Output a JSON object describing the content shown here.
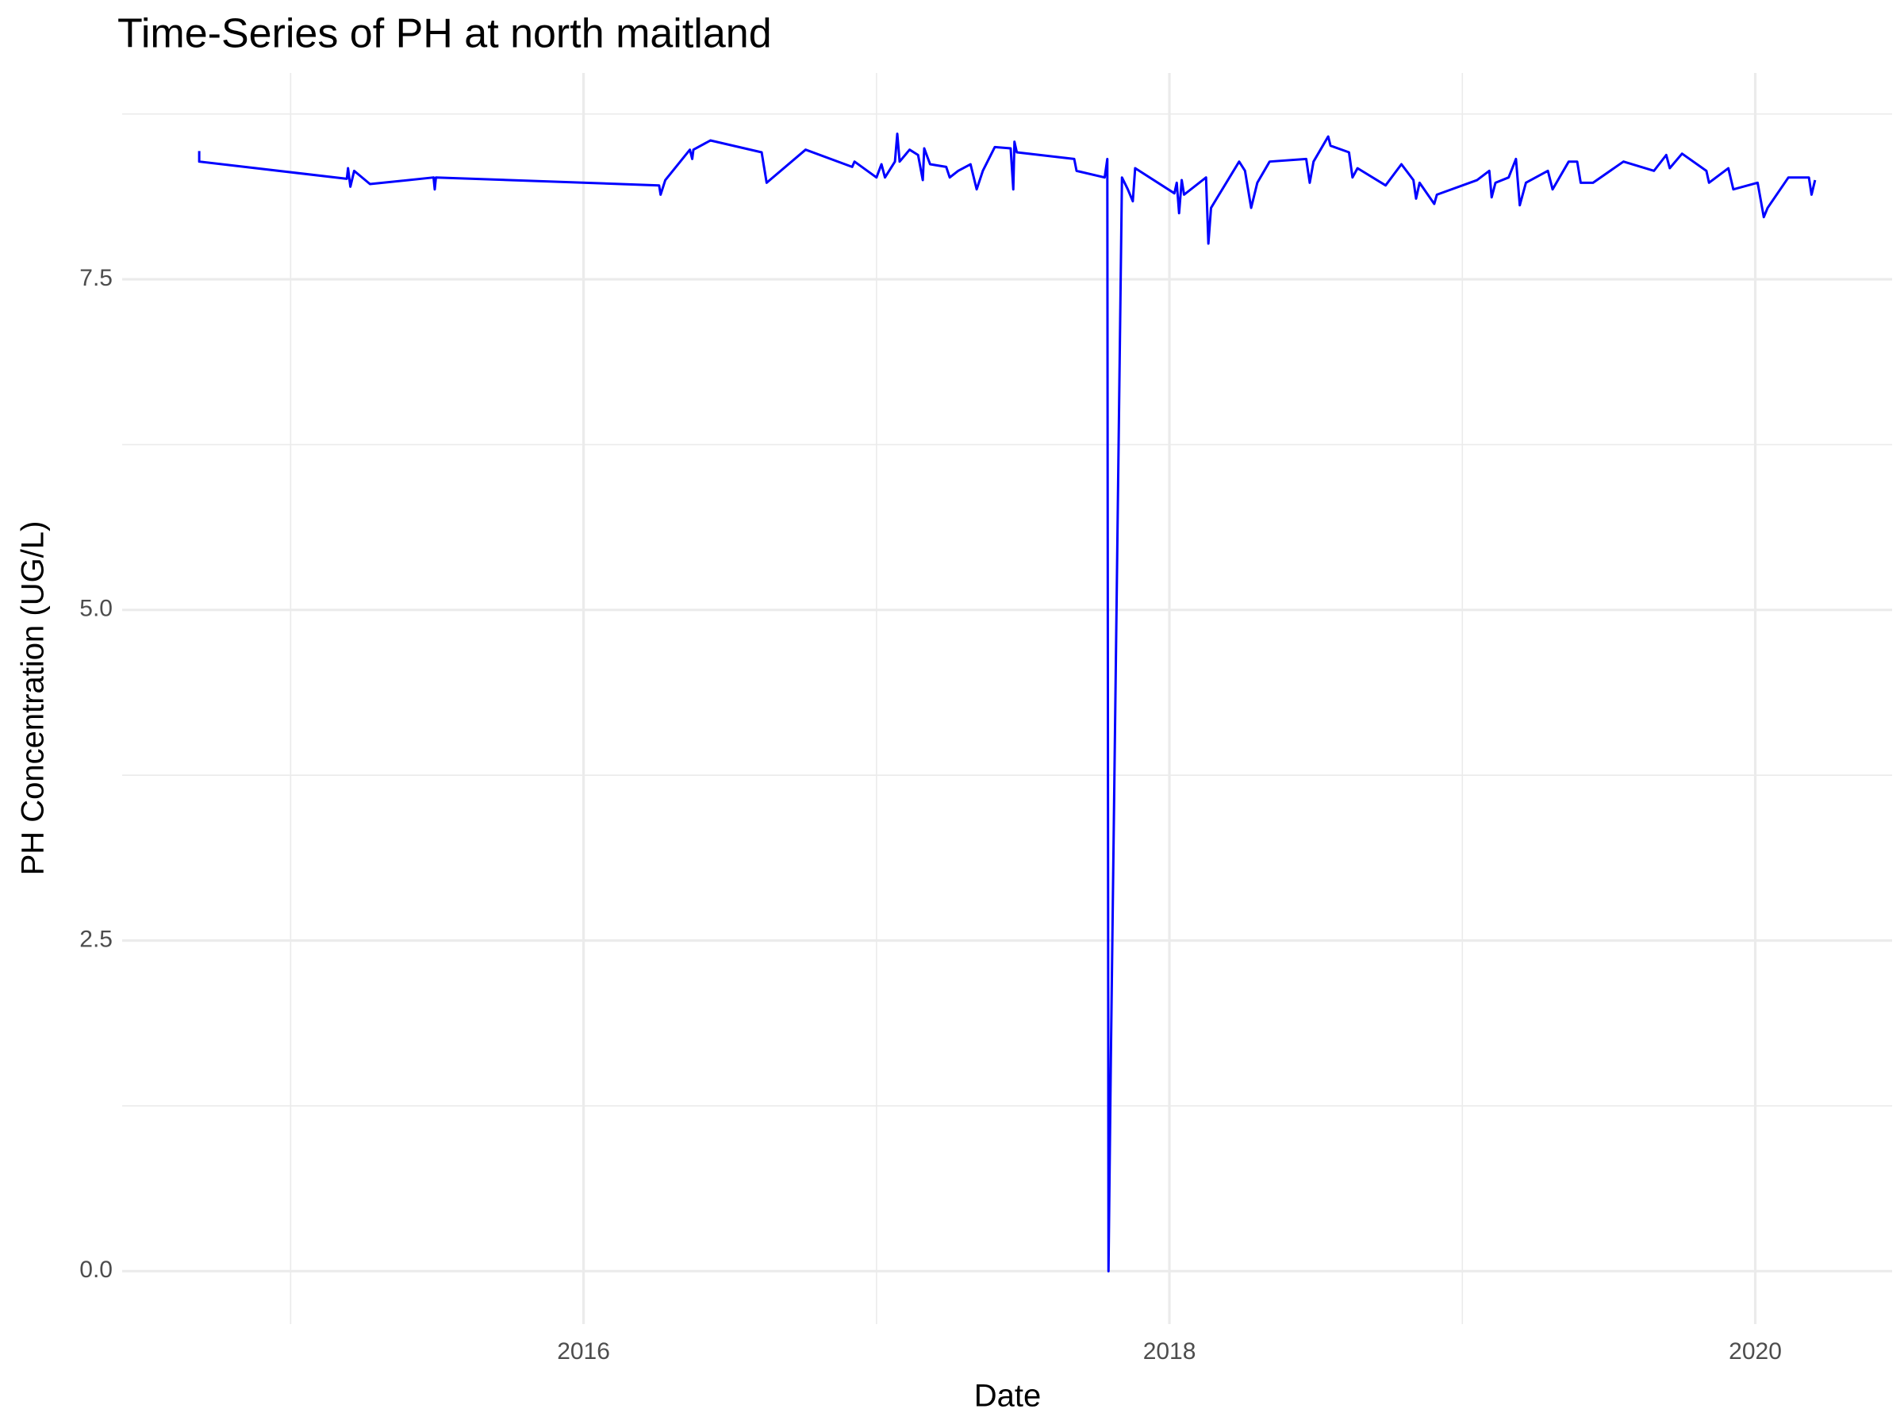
{
  "chart_data": {
    "type": "line",
    "title": "Time-Series of PH at north maitland",
    "x_label": "Date",
    "y_label": "PH Concentration (UG/L)",
    "color": "#0000ff",
    "grid": true,
    "xlim": [
      2014.425,
      2020.467
    ],
    "ylim": [
      -0.4,
      9.06
    ],
    "xticks": [
      2016,
      2018,
      2020
    ],
    "yticks": [
      {
        "value": 0,
        "label": "0.0"
      },
      2.5,
      {
        "value": 5,
        "label": "5.0"
      },
      7.5
    ],
    "x": [
      2014.688,
      2014.688,
      2015.192,
      2015.196,
      2015.204,
      2015.217,
      2015.271,
      2015.488,
      2015.492,
      2015.496,
      2016.258,
      2016.263,
      2016.279,
      2016.363,
      2016.371,
      2016.375,
      2016.433,
      2016.608,
      2016.625,
      2016.758,
      2016.917,
      2016.925,
      2017.0,
      2017.017,
      2017.029,
      2017.063,
      2017.071,
      2017.079,
      2017.113,
      2017.142,
      2017.158,
      2017.163,
      2017.183,
      2017.238,
      2017.25,
      2017.279,
      2017.321,
      2017.342,
      2017.363,
      2017.404,
      2017.458,
      2017.467,
      2017.471,
      2017.479,
      2017.675,
      2017.683,
      2017.779,
      2017.788,
      2017.792,
      2017.8,
      2017.838,
      2017.858,
      2017.875,
      2017.883,
      2018.017,
      2018.025,
      2018.033,
      2018.042,
      2018.05,
      2018.125,
      2018.133,
      2018.142,
      2018.238,
      2018.258,
      2018.279,
      2018.3,
      2018.342,
      2018.467,
      2018.479,
      2018.492,
      2018.542,
      2018.55,
      2018.613,
      2018.625,
      2018.642,
      2018.738,
      2018.792,
      2018.833,
      2018.842,
      2018.854,
      2018.904,
      2018.913,
      2019.05,
      2019.092,
      2019.1,
      2019.113,
      2019.158,
      2019.183,
      2019.196,
      2019.217,
      2019.292,
      2019.308,
      2019.363,
      2019.392,
      2019.404,
      2019.446,
      2019.55,
      2019.654,
      2019.696,
      2019.708,
      2019.75,
      2019.833,
      2019.842,
      2019.908,
      2019.925,
      2020.008,
      2020.029,
      2020.042,
      2020.113,
      2020.183,
      2020.192,
      2020.204
    ],
    "values": [
      8.47,
      8.39,
      8.26,
      8.34,
      8.2,
      8.32,
      8.22,
      8.27,
      8.18,
      8.27,
      8.21,
      8.14,
      8.25,
      8.48,
      8.41,
      8.48,
      8.55,
      8.46,
      8.23,
      8.48,
      8.35,
      8.39,
      8.27,
      8.37,
      8.27,
      8.39,
      8.6,
      8.39,
      8.48,
      8.44,
      8.25,
      8.49,
      8.37,
      8.35,
      8.27,
      8.32,
      8.37,
      8.18,
      8.32,
      8.5,
      8.49,
      8.18,
      8.54,
      8.46,
      8.41,
      8.32,
      8.27,
      8.41,
      0,
      1.59,
      8.27,
      8.18,
      8.09,
      8.34,
      8.15,
      8.23,
      8.0,
      8.25,
      8.14,
      8.27,
      7.77,
      8.04,
      8.39,
      8.32,
      8.04,
      8.23,
      8.39,
      8.41,
      8.23,
      8.39,
      8.58,
      8.51,
      8.46,
      8.27,
      8.34,
      8.21,
      8.37,
      8.25,
      8.11,
      8.23,
      8.07,
      8.14,
      8.25,
      8.32,
      8.12,
      8.23,
      8.27,
      8.41,
      8.06,
      8.23,
      8.32,
      8.18,
      8.39,
      8.39,
      8.23,
      8.23,
      8.39,
      8.32,
      8.44,
      8.34,
      8.45,
      8.32,
      8.23,
      8.34,
      8.18,
      8.23,
      7.97,
      8.04,
      8.27,
      8.27,
      8.14,
      8.25
    ]
  }
}
